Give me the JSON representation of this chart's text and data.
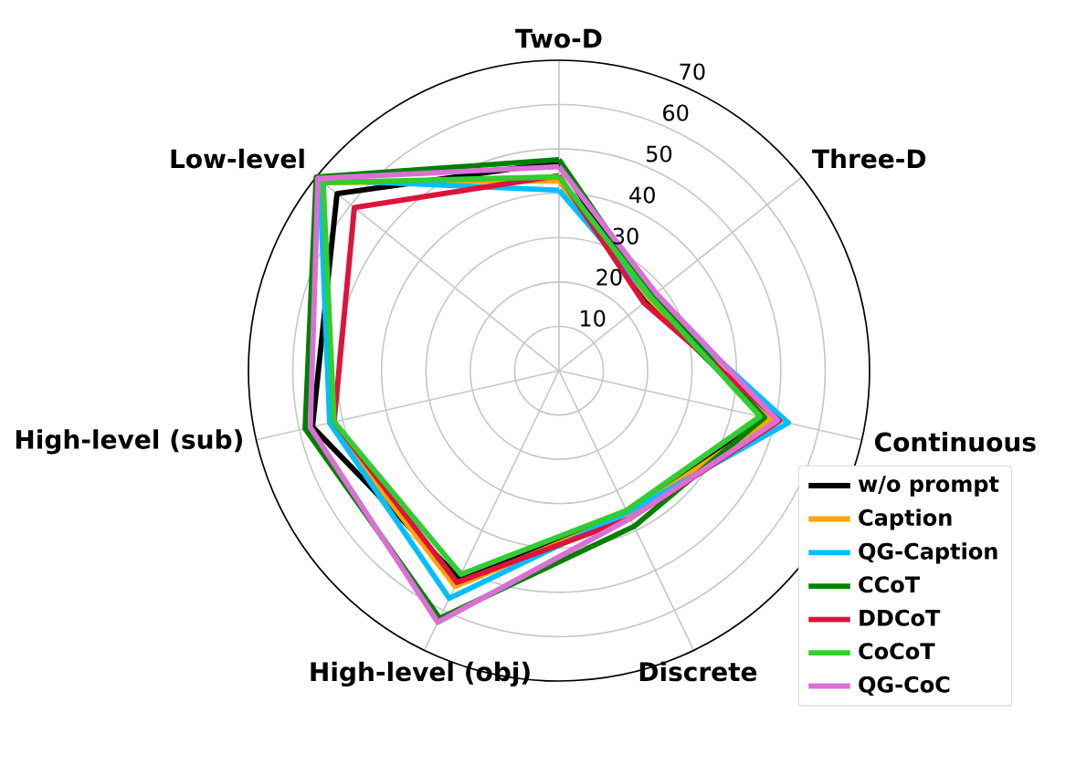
{
  "chart_data": {
    "type": "radar",
    "categories": [
      "Two-D",
      "Three-D",
      "Continuous",
      "Discrete",
      "High-level (obj)",
      "High-level (sub)",
      "Low-level"
    ],
    "ylim": [
      0,
      70
    ],
    "yticks": [
      10,
      20,
      30,
      40,
      50,
      60,
      70
    ],
    "grid": true,
    "legend": "bottom right",
    "series": [
      {
        "name": "w/o prompt",
        "color": "#000000",
        "values": [
          47,
          25.5,
          48,
          36,
          52,
          57,
          64
        ]
      },
      {
        "name": "Caption",
        "color": "#ffa500",
        "values": [
          42.8,
          26,
          49,
          36,
          54,
          53,
          68
        ]
      },
      {
        "name": "QG-Caption",
        "color": "#00bfff",
        "values": [
          40.7,
          26.5,
          53,
          35.5,
          57,
          53,
          69
        ]
      },
      {
        "name": "CCoT",
        "color": "#008000",
        "values": [
          47.6,
          27,
          47.5,
          39,
          62,
          58.7,
          70
        ]
      },
      {
        "name": "DDCoT",
        "color": "#dc143c",
        "values": [
          44,
          24.5,
          51,
          37,
          53,
          52,
          59
        ]
      },
      {
        "name": "CoCoT",
        "color": "#32cd32",
        "values": [
          43.7,
          26.5,
          46.5,
          35,
          51,
          52,
          68
        ]
      },
      {
        "name": "QG-CoC",
        "color": "#da70d6",
        "values": [
          46,
          28,
          50.5,
          37,
          63,
          57.5,
          69.5
        ]
      }
    ]
  }
}
